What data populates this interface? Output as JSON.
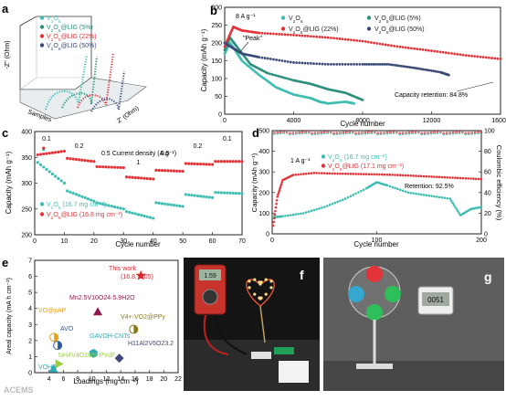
{
  "panel_letters": [
    "a",
    "b",
    "c",
    "d",
    "e",
    "f",
    "g"
  ],
  "colors": {
    "v2o5": "#3dbdb1",
    "lig5": "#2d8f7a",
    "lig22": "#e23339",
    "lig50": "#3c4a78",
    "work_star": "#d9272e",
    "grid": "#dddddd"
  },
  "watermark": "ACEMS",
  "chart_data": [
    {
      "id": "a",
      "type": "scatter",
      "xlabel": "Z' (Ohm)",
      "ylabel": "-Z'' (Ohm)",
      "depth_label": "Samples",
      "legend": [
        "V2O5",
        "V2O5@LIG (5%)",
        "V2O5@LIG (22%)",
        "V2O5@LIG (50%)"
      ],
      "legend_parts": [
        {
          "pre": "V",
          "sub1": "2",
          "mid": "O",
          "sub2": "5",
          "suf": ""
        },
        {
          "pre": "V",
          "sub1": "2",
          "mid": "O",
          "sub2": "5",
          "suf": "@LIG (5%)"
        },
        {
          "pre": "V",
          "sub1": "2",
          "mid": "O",
          "sub2": "5",
          "suf": "@LIG (22%)"
        },
        {
          "pre": "V",
          "sub1": "2",
          "mid": "O",
          "sub2": "5",
          "suf": "@LIG (50%)"
        }
      ]
    },
    {
      "id": "b",
      "type": "scatter",
      "annotation_rate": "8 A g⁻¹",
      "annotation_peak": "\"Peak\"",
      "annotation_retention": "Capacity retention: 84.8%",
      "xlabel": "Cycle number",
      "ylabel": "Capacity (mAh g⁻¹)",
      "xlim": [
        0,
        16000
      ],
      "ylim": [
        0,
        300
      ],
      "xticks": [
        0,
        4000,
        8000,
        12000,
        16000
      ],
      "yticks": [
        0,
        50,
        100,
        150,
        200,
        250,
        300
      ],
      "series": [
        {
          "name": "V2O5",
          "color": "#3dbdb1",
          "x": [
            0,
            300,
            600,
            1000,
            2000,
            3000,
            4000,
            5000,
            5500,
            6000,
            7000,
            7500
          ],
          "y": [
            170,
            200,
            180,
            150,
            110,
            75,
            55,
            45,
            35,
            30,
            35,
            30
          ]
        },
        {
          "name": "V2O5@LIG (5%)",
          "color": "#2d8f7a",
          "x": [
            0,
            300,
            700,
            1500,
            2500,
            4000,
            5000,
            6000,
            7000,
            8000
          ],
          "y": [
            180,
            215,
            190,
            140,
            115,
            95,
            85,
            70,
            60,
            40
          ]
        },
        {
          "name": "V2O5@LIG (22%)",
          "color": "#e23339",
          "x": [
            0,
            500,
            1000,
            2000,
            4000,
            6000,
            8000,
            10000,
            12000,
            14000,
            16000
          ],
          "y": [
            190,
            245,
            235,
            228,
            222,
            215,
            205,
            190,
            178,
            165,
            155
          ]
        },
        {
          "name": "V2O5@LIG (50%)",
          "color": "#3c4a78",
          "x": [
            0,
            500,
            1000,
            2000,
            4000,
            6000,
            8000,
            9500,
            11000,
            12500,
            13000
          ],
          "y": [
            200,
            185,
            170,
            160,
            145,
            140,
            140,
            140,
            130,
            118,
            110
          ]
        }
      ],
      "legend_parts": [
        {
          "pre": "V",
          "sub1": "2",
          "mid": "O",
          "sub2": "5",
          "suf": ""
        },
        {
          "pre": "V",
          "sub1": "2",
          "mid": "O",
          "sub2": "5",
          "suf": "@LIG (5%)"
        },
        {
          "pre": "V",
          "sub1": "2",
          "mid": "O",
          "sub2": "5",
          "suf": "@LIG (22%)"
        },
        {
          "pre": "V",
          "sub1": "2",
          "mid": "O",
          "sub2": "5",
          "suf": "@LIG (50%)"
        }
      ]
    },
    {
      "id": "c",
      "type": "scatter",
      "annotation_title": "Current density (A g⁻¹)",
      "rate_labels": [
        {
          "text": "0.1",
          "x": 4
        },
        {
          "text": "0.2",
          "x": 15
        },
        {
          "text": "0.5",
          "x": 24
        },
        {
          "text": "1",
          "x": 35
        },
        {
          "text": "0.5",
          "x": 44
        },
        {
          "text": "0.2",
          "x": 55
        },
        {
          "text": "0.1",
          "x": 65
        }
      ],
      "xlabel": "Cycle number",
      "ylabel": "Capacity (mAh g⁻¹)",
      "xlim": [
        0,
        70
      ],
      "ylim": [
        200,
        400
      ],
      "xticks": [
        0,
        10,
        20,
        30,
        40,
        50,
        60,
        70
      ],
      "yticks": [
        200,
        250,
        300,
        350,
        400
      ],
      "series": [
        {
          "name": "V2O5 (16.7 mg cm⁻²)",
          "color": "#3dbdb1",
          "steps": [
            [
              1,
              10,
              340,
              300
            ],
            [
              11,
              20,
              285,
              265
            ],
            [
              21,
              30,
              262,
              250
            ],
            [
              31,
              40,
              245,
              232
            ],
            [
              41,
              50,
              262,
              255
            ],
            [
              51,
              60,
              278,
              272
            ],
            [
              61,
              70,
              282,
              280
            ]
          ],
          "peak": [
            3,
            365
          ]
        },
        {
          "name": "V2O5@LIG (16.8 mg cm⁻²)",
          "color": "#e23339",
          "steps": [
            [
              1,
              10,
              355,
              362
            ],
            [
              11,
              20,
              348,
              342
            ],
            [
              21,
              30,
              332,
              330
            ],
            [
              31,
              40,
              312,
              308
            ],
            [
              41,
              50,
              325,
              323
            ],
            [
              51,
              60,
              338,
              336
            ],
            [
              61,
              70,
              342,
              342
            ]
          ],
          "peak": [
            3,
            368
          ]
        }
      ],
      "legend_parts": [
        {
          "pre": "V",
          "sub1": "2",
          "mid": "O",
          "sub2": "5",
          "suf": " (16.7 mg cm⁻²)"
        },
        {
          "pre": "V",
          "sub1": "2",
          "mid": "O",
          "sub2": "5",
          "suf": "@LIG (16.8 mg cm⁻²)"
        }
      ]
    },
    {
      "id": "d",
      "type": "scatter",
      "annotation_rate": "1 A g⁻¹",
      "annotation_retention": "Retention: 92.5%",
      "xlabel": "Cycle number",
      "ylabel": "Capacity (mAh g⁻¹)",
      "y2label": "Coulombic efficiency (%)",
      "xlim": [
        0,
        200
      ],
      "ylim": [
        0,
        500
      ],
      "y2lim": [
        0,
        100
      ],
      "xticks": [
        0,
        100,
        200
      ],
      "yticks": [
        0,
        100,
        200,
        300,
        400,
        500
      ],
      "y2ticks": [
        0,
        20,
        40,
        60,
        80,
        100
      ],
      "series": [
        {
          "name": "V2O5 (16.7 mg cm⁻²)",
          "color": "#3dbdb1",
          "x": [
            1,
            10,
            30,
            50,
            70,
            90,
            100,
            110,
            130,
            150,
            170,
            180,
            190,
            200
          ],
          "y": [
            80,
            85,
            100,
            130,
            170,
            220,
            250,
            235,
            200,
            185,
            170,
            90,
            120,
            130
          ]
        },
        {
          "name": "V2O5@LIG (17.1 mg cm⁻²)",
          "color": "#e23339",
          "x": [
            1,
            5,
            10,
            20,
            40,
            60,
            80,
            100,
            120,
            140,
            160,
            180,
            200
          ],
          "y": [
            40,
            180,
            260,
            285,
            295,
            292,
            290,
            288,
            285,
            280,
            275,
            270,
            265
          ]
        }
      ],
      "ce_series": [
        {
          "color": "#3dbdb1",
          "y": 98
        },
        {
          "color": "#e23339",
          "y": 99
        }
      ],
      "legend_parts": [
        {
          "pre": "V",
          "sub1": "2",
          "mid": "O",
          "sub2": "5",
          "suf": " (16.7 mg cm⁻²)"
        },
        {
          "pre": "V",
          "sub1": "2",
          "mid": "O",
          "sub2": "5",
          "suf": "@LIG (17.1 mg cm⁻²)"
        }
      ]
    },
    {
      "id": "e",
      "type": "scatter",
      "xlabel": "Loadings (mg cm⁻²)",
      "ylabel": "Areal capacity (mA h cm⁻²)",
      "xlim": [
        2,
        22
      ],
      "ylim": [
        0,
        7
      ],
      "xticks": [
        4,
        6,
        8,
        10,
        12,
        14,
        16,
        18,
        20,
        22
      ],
      "yticks": [
        0,
        1,
        2,
        3,
        4,
        5,
        6,
        7
      ],
      "points": [
        {
          "label": "This work",
          "value_label": "(16.8, 6.05)",
          "x": 16.8,
          "y": 6.05,
          "marker": "star",
          "color": "#d9272e"
        },
        {
          "label": "Mn2.5V10O24·5.9H2O",
          "x": 10.8,
          "y": 3.8,
          "marker": "triangle",
          "color": "#8b1a4a"
        },
        {
          "label": "VO@pAP",
          "x": 4.7,
          "y": 2.2,
          "marker": "circle-half",
          "color": "#e8a21a"
        },
        {
          "label": "V4+-VO2@PPy",
          "x": 15.8,
          "y": 2.7,
          "marker": "circle-half",
          "color": "#8a7a20"
        },
        {
          "label": "AVO",
          "x": 5.2,
          "y": 1.7,
          "marker": "circle-half",
          "color": "#2a5aa8"
        },
        {
          "label": "GAVOH-CNTs",
          "x": 10.2,
          "y": 1.2,
          "marker": "hexagon",
          "color": "#34a7b5"
        },
        {
          "label": "H11Al2V6O23.2",
          "x": 13.8,
          "y": 0.9,
          "marker": "diamond",
          "color": "#3c4a78"
        },
        {
          "label": "NH4V4O10/S-PVdF",
          "x": 5.4,
          "y": 0.55,
          "marker": "triangle-right",
          "color": "#9ccf3a"
        },
        {
          "label": "VOHA",
          "x": 4.6,
          "y": 0.25,
          "marker": "triangle",
          "color": "#34a7b5"
        }
      ]
    }
  ],
  "photo_f": {
    "label": "f",
    "meter_reading": "1.59"
  },
  "photo_g": {
    "label": "g",
    "clock_reading": "0051"
  }
}
